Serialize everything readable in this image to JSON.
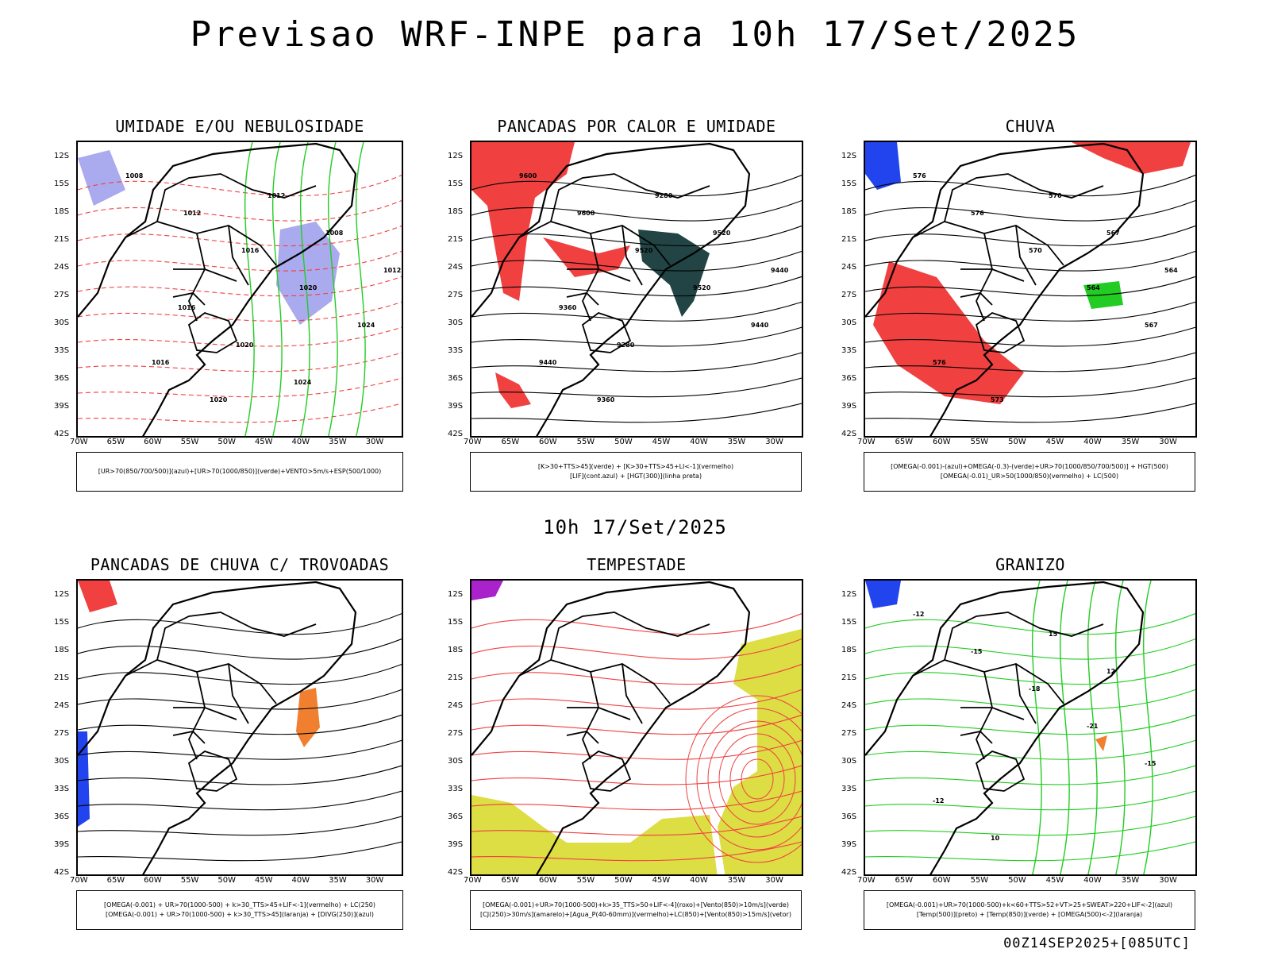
{
  "header": {
    "title": "Previsao WRF-INPE  para 10h 17/Set/2025"
  },
  "subheader": {
    "time": "10h 17/Set/2025"
  },
  "footer": {
    "run": "00Z14SEP2025+[085UTC]"
  },
  "axes": {
    "lat_labels": [
      "12S",
      "15S",
      "18S",
      "21S",
      "24S",
      "27S",
      "30S",
      "33S",
      "36S",
      "39S",
      "42S"
    ],
    "lon_labels": [
      "70W",
      "65W",
      "60W",
      "55W",
      "50W",
      "45W",
      "40W",
      "35W",
      "30W"
    ]
  },
  "panels": [
    {
      "title": "UMIDADE E/OU NEBULOSIDADE",
      "legend": [
        "[UR>70(850/700/500)](azul)+[UR>70(1000/850)](verde)+VENTO>5m/s+ESP(500/1000)"
      ],
      "contour_labels": [
        "1008",
        "1012",
        "1016",
        "1020",
        "1024",
        "1016",
        "1020",
        "1012",
        "1008",
        "1012",
        "1016",
        "1020",
        "1024"
      ]
    },
    {
      "title": "PANCADAS POR CALOR E UMIDADE",
      "legend": [
        "[K>30+TTS>45](verde) + [K>30+TTS>45+LI<-1](vermelho)",
        "[LIF](cont.azul) + [HGT(300)](linha preta)"
      ],
      "contour_labels": [
        "9600",
        "9600",
        "9520",
        "9520",
        "9440",
        "9440",
        "9360",
        "9280",
        "9520",
        "9440",
        "9360",
        "9280"
      ]
    },
    {
      "title": "CHUVA",
      "legend": [
        "[OMEGA(-0.001)-(azul)+OMEGA(-0.3)-(verde)+UR>70(1000/850/700/500)] + HGT(500)",
        "[OMEGA(-0.01)_UR>50(1000/850)(vermelho) + LC(500)"
      ],
      "contour_labels": [
        "576",
        "576",
        "570",
        "564",
        "567",
        "576",
        "573",
        "570",
        "567",
        "564"
      ]
    },
    {
      "title": "PANCADAS DE CHUVA C/ TROVOADAS",
      "legend": [
        "[OMEGA(-0.001) + UR>70(1000-500) + k>30_TTS>45+LIF<-1](vermelho) + LC(250)",
        "[OMEGA(-0.001) + UR>70(1000-500) + k>30_TTS>45](laranja) + [DIVG(250)](azul)"
      ],
      "contour_labels": []
    },
    {
      "title": "TEMPESTADE",
      "legend": [
        "[OMEGA(-0.001)+UR>70(1000-500)+k>35_TTS>50+LIF<-4](roxo)+[Vento(850)>10m/s](verde)",
        "[CJ(250)>30m/s](amarelo)+[Agua_P(40-60mm)](vermelho)+LC(850)+[Vento(850)>15m/s](vetor)"
      ],
      "contour_labels": []
    },
    {
      "title": "GRANIZO",
      "legend": [
        "[OMEGA(-0.001)+UR>70(1000-500)+k<60+TTS>52+VT>25+SWEAT>220+LIF<-2](azul)",
        "[Temp(500)](preto) + [Temp(850)](verde) + [OMEGA(500)<-2](laranja)"
      ],
      "contour_labels": [
        "-12",
        "-15",
        "-18",
        "-21",
        "-15",
        "-12",
        "10",
        "15",
        "12"
      ]
    }
  ],
  "colors": {
    "red": "#f04040",
    "green": "#22cc22",
    "blue": "#2244ee",
    "lilac": "#aaaaee",
    "yellow": "#dddd44",
    "teal": "#224444",
    "orange": "#f08030",
    "purple": "#aa22cc"
  }
}
